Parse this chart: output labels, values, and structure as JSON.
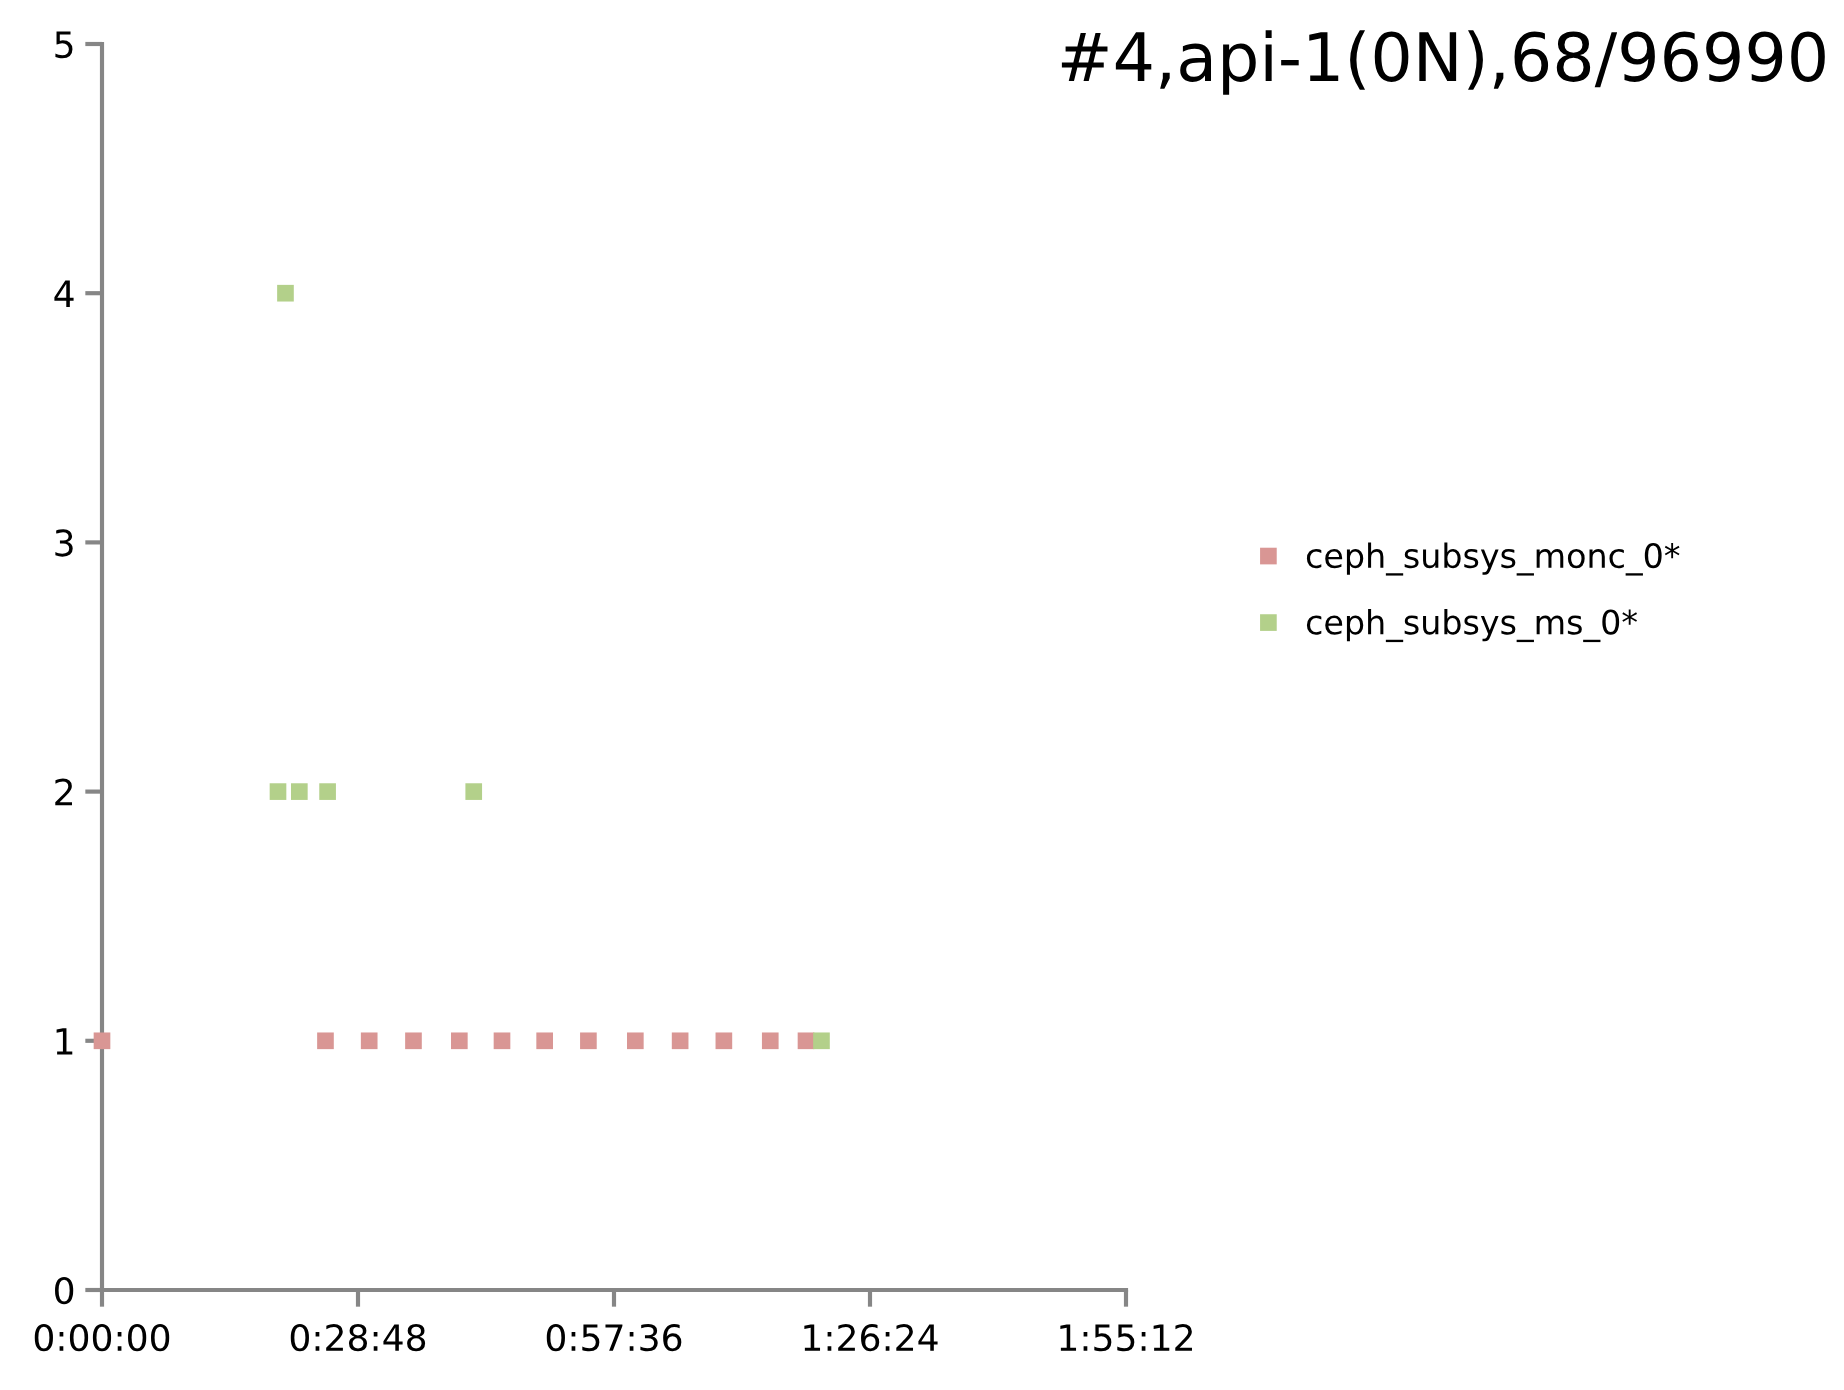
{
  "chart_data": {
    "type": "scatter",
    "title": "#4,api-1(0N),68/96990",
    "marker": "square",
    "legend": "right",
    "grid": false,
    "xlim": [
      0,
      1.92
    ],
    "xticks": [
      {
        "value": 0,
        "label": "0:00:00"
      },
      {
        "value": 0.48,
        "label": "0:28:48"
      },
      {
        "value": 0.96,
        "label": "0:57:36"
      },
      {
        "value": 1.44,
        "label": "1:26:24"
      },
      {
        "value": 1.92,
        "label": "1:55:12"
      }
    ],
    "ylim": [
      0,
      5
    ],
    "yticks": [
      0,
      1,
      2,
      3,
      4,
      5
    ],
    "series": [
      {
        "name": "ceph_subsys_monc_0*",
        "color": "#d99694",
        "x": [
          0,
          0.419,
          0.501,
          0.584,
          0.67,
          0.75,
          0.83,
          0.912,
          1.0,
          1.084,
          1.166,
          1.253,
          1.32
        ],
        "values": [
          1,
          1,
          1,
          1,
          1,
          1,
          1,
          1,
          1,
          1,
          1,
          1,
          1
        ]
      },
      {
        "name": "ceph_subsys_ms_0*",
        "color": "#b3d08a",
        "x": [
          0.344,
          0.33,
          0.37,
          0.423,
          0.697,
          1.349
        ],
        "values": [
          4,
          2,
          2,
          2,
          2,
          1
        ]
      }
    ]
  }
}
